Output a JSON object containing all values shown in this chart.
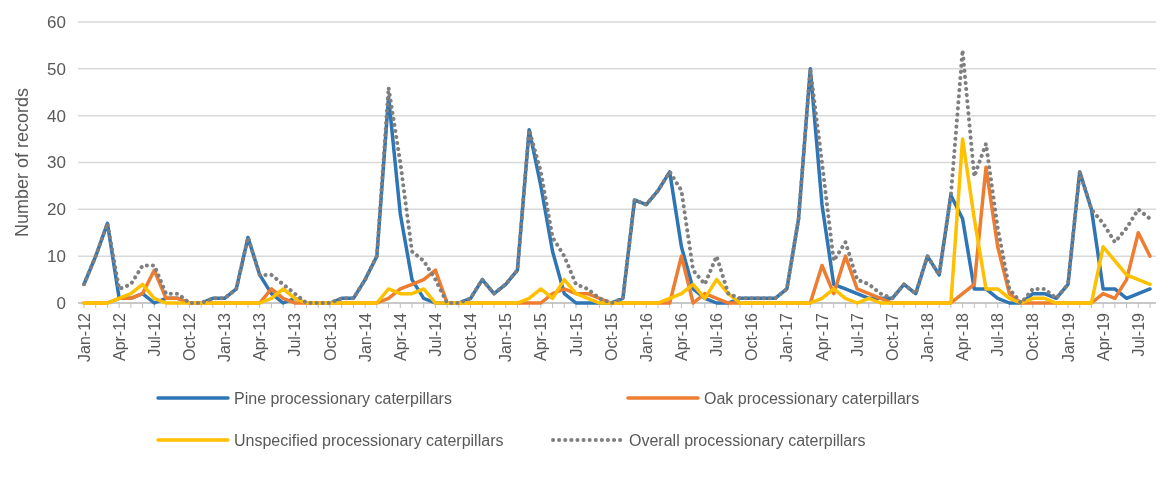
{
  "chart_data": {
    "type": "line",
    "ylabel": "Number of records",
    "categories": [
      "Jan-12",
      null,
      null,
      "Apr-12",
      null,
      null,
      "Jul-12",
      null,
      null,
      "Oct-12",
      null,
      null,
      "Jan-13",
      null,
      null,
      "Apr-13",
      null,
      null,
      "Jul-13",
      null,
      null,
      "Oct-13",
      null,
      null,
      "Jan-14",
      null,
      null,
      "Apr-14",
      null,
      null,
      "Jul-14",
      null,
      null,
      "Oct-14",
      null,
      null,
      "Jan-15",
      null,
      null,
      "Apr-15",
      null,
      null,
      "Jul-15",
      null,
      null,
      "Oct-15",
      null,
      null,
      "Jan-16",
      null,
      null,
      "Apr-16",
      null,
      null,
      "Jul-16",
      null,
      null,
      "Oct-16",
      null,
      null,
      "Jan-17",
      null,
      null,
      "Apr-17",
      null,
      null,
      "Jul-17",
      null,
      null,
      "Oct-17",
      null,
      null,
      "Jan-18",
      null,
      null,
      "Apr-18",
      null,
      null,
      "Jul-18",
      null,
      null,
      "Oct-18",
      null,
      null,
      "Jan-19",
      null,
      null,
      "Apr-19",
      null,
      null,
      "Jul-19",
      null
    ],
    "series": [
      {
        "name": "Pine processionary caterpillars",
        "color": "#2e75b6",
        "line_style": "solid",
        "values": [
          4,
          10,
          17,
          1,
          1,
          2,
          0,
          1,
          1,
          0,
          0,
          1,
          1,
          3,
          14,
          6,
          2,
          0,
          1,
          0,
          0,
          0,
          1,
          1,
          5,
          10,
          44,
          19,
          5,
          1,
          0,
          0,
          0,
          1,
          5,
          2,
          4,
          7,
          37,
          25,
          11,
          2,
          0,
          0,
          0,
          0,
          1,
          22,
          21,
          24,
          28,
          12,
          3,
          1,
          0,
          0,
          1,
          1,
          1,
          1,
          3,
          18,
          50,
          21,
          4,
          3,
          2,
          1,
          1,
          1,
          4,
          2,
          10,
          6,
          23,
          18,
          3,
          3,
          1,
          0,
          0,
          2,
          2,
          1,
          4,
          28,
          20,
          3,
          3,
          1,
          2,
          3
        ]
      },
      {
        "name": "Oak processionary caterpillars",
        "color": "#ed7d31",
        "line_style": "solid",
        "values": [
          0,
          0,
          0,
          1,
          1,
          2,
          7,
          1,
          1,
          0,
          0,
          0,
          0,
          0,
          0,
          0,
          3,
          1,
          0,
          0,
          0,
          0,
          0,
          0,
          0,
          0,
          1,
          3,
          4,
          5,
          7,
          0,
          0,
          0,
          0,
          0,
          0,
          0,
          0,
          0,
          2,
          3,
          2,
          2,
          1,
          0,
          0,
          0,
          0,
          0,
          0,
          10,
          0,
          2,
          1,
          0,
          0,
          0,
          0,
          0,
          0,
          0,
          0,
          8,
          2,
          10,
          3,
          2,
          1,
          0,
          0,
          0,
          0,
          0,
          0,
          2,
          4,
          29,
          12,
          2,
          0,
          0,
          0,
          0,
          0,
          0,
          0,
          2,
          1,
          5,
          15,
          10
        ]
      },
      {
        "name": "Unspecified processionary caterpillars",
        "color": "#ffc000",
        "line_style": "solid",
        "values": [
          0,
          0,
          0,
          1,
          2,
          4,
          1,
          0,
          0,
          0,
          0,
          0,
          0,
          0,
          0,
          0,
          1,
          3,
          1,
          0,
          0,
          0,
          0,
          0,
          0,
          0,
          3,
          2,
          2,
          3,
          0,
          0,
          0,
          0,
          0,
          0,
          0,
          0,
          1,
          3,
          1,
          5,
          2,
          1,
          0,
          0,
          0,
          0,
          0,
          0,
          1,
          2,
          4,
          1,
          5,
          2,
          0,
          0,
          0,
          0,
          0,
          0,
          0,
          1,
          3,
          1,
          0,
          1,
          0,
          0,
          0,
          0,
          0,
          0,
          0,
          35,
          18,
          3,
          3,
          1,
          0,
          1,
          1,
          0,
          0,
          0,
          0,
          12,
          9,
          6,
          5,
          4
        ]
      },
      {
        "name": "Overall processionary caterpillars",
        "color": "#7f7f7f",
        "line_style": "dotted",
        "values": [
          4,
          10,
          17,
          3,
          4,
          8,
          8,
          2,
          2,
          0,
          0,
          1,
          1,
          3,
          14,
          6,
          6,
          4,
          2,
          0,
          0,
          0,
          1,
          1,
          5,
          10,
          46,
          30,
          11,
          9,
          5,
          0,
          0,
          1,
          5,
          2,
          4,
          7,
          37,
          28,
          14,
          10,
          4,
          3,
          1,
          0,
          1,
          22,
          21,
          24,
          28,
          24,
          7,
          4,
          10,
          2,
          1,
          1,
          1,
          1,
          3,
          18,
          50,
          30,
          9,
          13,
          5,
          4,
          2,
          1,
          4,
          2,
          10,
          6,
          23,
          54,
          27,
          34,
          16,
          3,
          0,
          3,
          3,
          1,
          4,
          28,
          20,
          17,
          13,
          16,
          20,
          18
        ]
      }
    ],
    "ylim": [
      0,
      60
    ],
    "yticks": [
      0,
      10,
      20,
      30,
      40,
      50,
      60
    ],
    "grid": "y",
    "legend": "bottom"
  }
}
